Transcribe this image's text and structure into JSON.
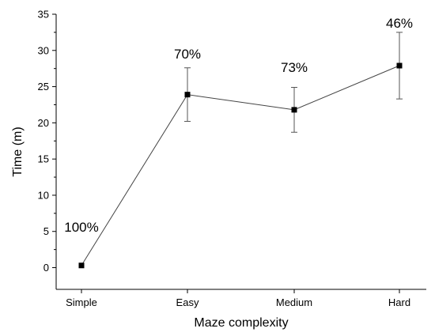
{
  "chart_data": {
    "type": "line",
    "categories": [
      "Simple",
      "Easy",
      "Medium",
      "Hard"
    ],
    "values": [
      0.3,
      23.9,
      21.8,
      27.9
    ],
    "error_low": [
      0.3,
      20.2,
      18.7,
      23.3
    ],
    "error_high": [
      0.3,
      27.6,
      24.9,
      32.5
    ],
    "annotations": [
      "100%",
      "70%",
      "73%",
      "46%"
    ],
    "xlabel": "Maze complexity",
    "ylabel": "Time (m)",
    "ylim": [
      -3,
      35
    ],
    "yticks": [
      0,
      5,
      10,
      15,
      20,
      25,
      30,
      35
    ],
    "grid": false,
    "legend": "none",
    "marker": "square",
    "colors": {
      "marker": "#000000",
      "line": "#444444",
      "errorbar": "#555555"
    }
  }
}
